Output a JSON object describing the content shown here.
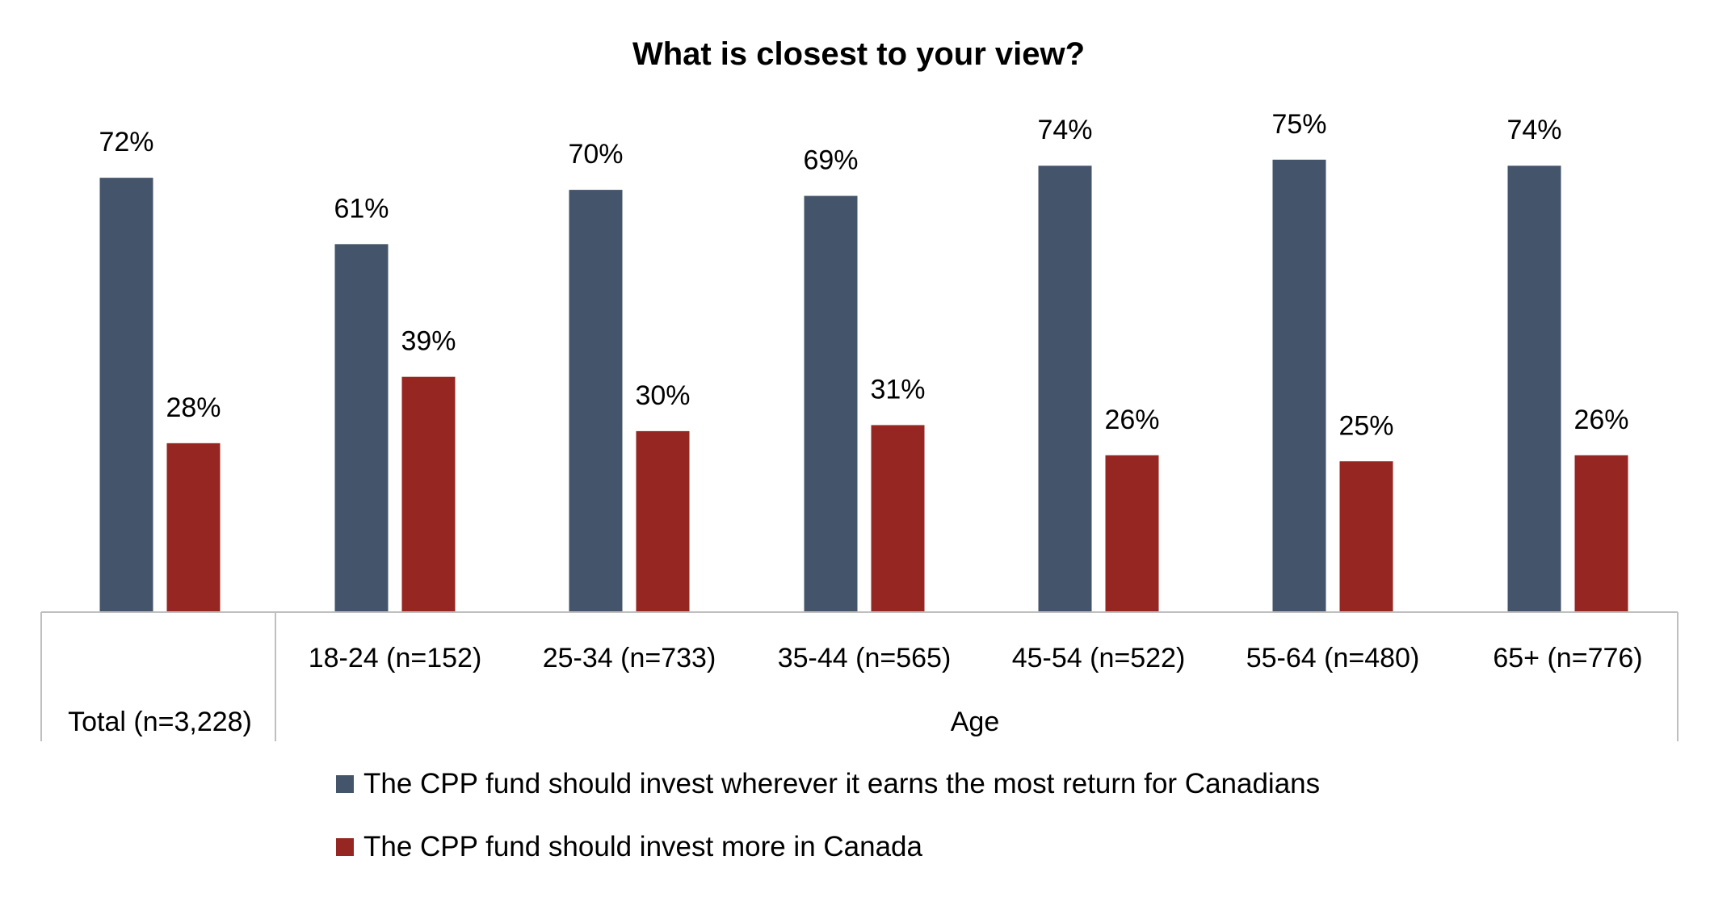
{
  "chart_data": {
    "type": "bar",
    "title": "What is closest to your view?",
    "categories": [
      "Total (n=3,228)",
      "18-24 (n=152)",
      "25-34 (n=733)",
      "35-44 (n=565)",
      "45-54 (n=522)",
      "55-64 (n=480)",
      "65+ (n=776)"
    ],
    "group_label": "Age",
    "series": [
      {
        "name": "The CPP fund should invest wherever it earns the most return for Canadians",
        "color": "#44546a",
        "values": [
          72,
          61,
          70,
          69,
          74,
          75,
          74
        ],
        "labels": [
          "72%",
          "61%",
          "70%",
          "69%",
          "74%",
          "75%",
          "74%"
        ]
      },
      {
        "name": "The CPP fund should invest more in Canada",
        "color": "#962621",
        "values": [
          28,
          39,
          30,
          31,
          26,
          25,
          26
        ],
        "labels": [
          "28%",
          "39%",
          "30%",
          "31%",
          "26%",
          "25%",
          "26%"
        ]
      }
    ],
    "ylim": [
      0,
      100
    ],
    "grid": false,
    "legend_position": "bottom"
  }
}
